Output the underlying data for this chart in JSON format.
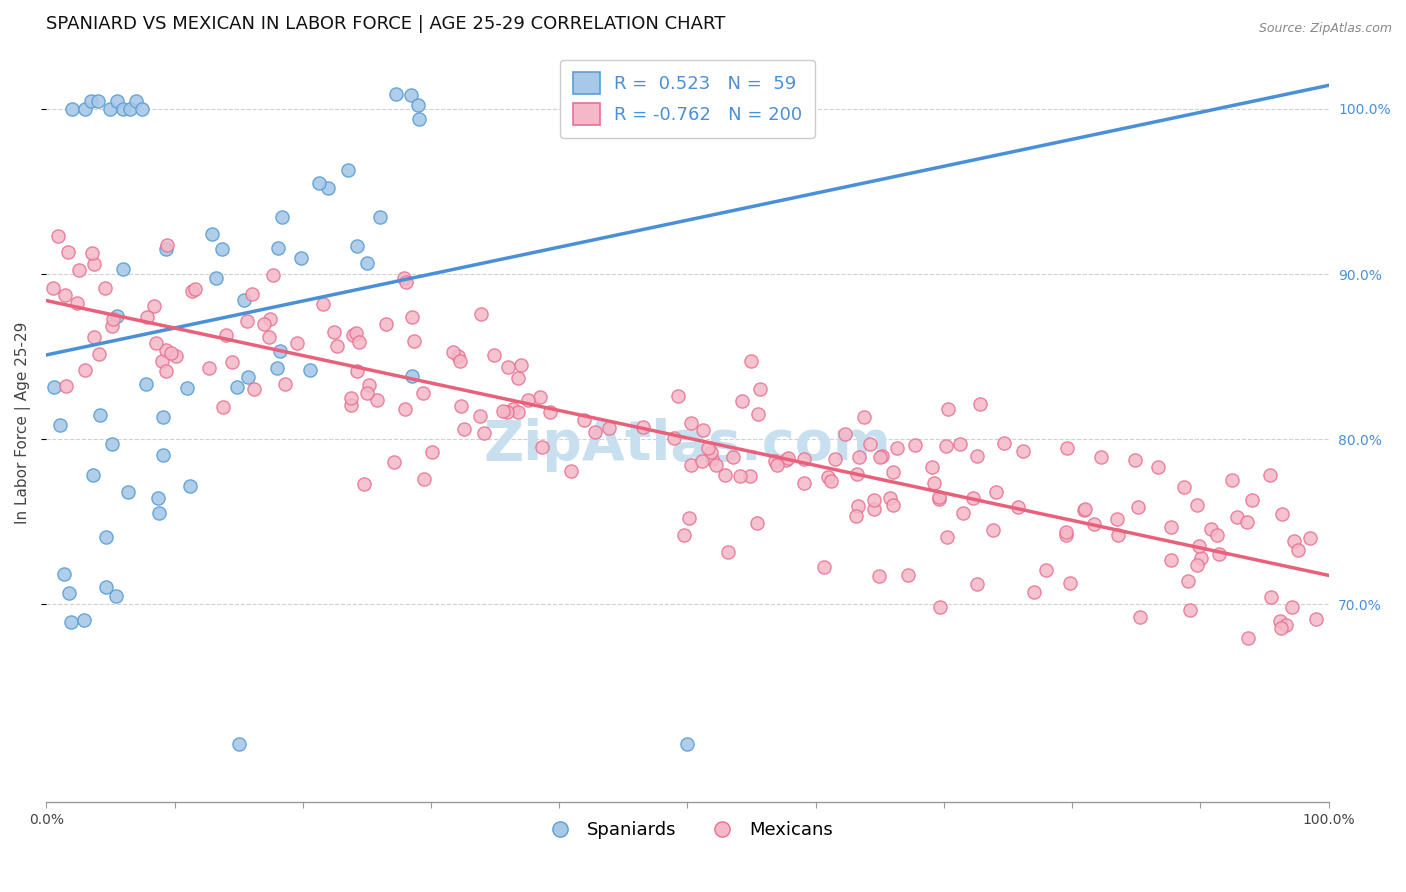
{
  "title": "SPANIARD VS MEXICAN IN LABOR FORCE | AGE 25-29 CORRELATION CHART",
  "source": "Source: ZipAtlas.com",
  "ylabel": "In Labor Force | Age 25-29",
  "ytick_labels": [
    "70.0%",
    "80.0%",
    "90.0%",
    "100.0%"
  ],
  "ytick_positions": [
    0.7,
    0.8,
    0.9,
    1.0
  ],
  "legend_spaniards": "Spaniards",
  "legend_mexicans": "Mexicans",
  "r_spaniard": 0.523,
  "n_spaniard": 59,
  "r_mexican": -0.762,
  "n_mexican": 200,
  "spaniard_color": "#a8c8e8",
  "mexican_color": "#f4b8c8",
  "spaniard_edge_color": "#5a9fd4",
  "mexican_edge_color": "#e87090",
  "spaniard_line_color": "#4a90d9",
  "mexican_line_color": "#e8607a",
  "background_color": "#ffffff",
  "grid_color": "#d0d0d0",
  "watermark_color": "#c8dff0",
  "title_fontsize": 13,
  "axis_label_fontsize": 11,
  "tick_fontsize": 10,
  "legend_fontsize": 13,
  "xlim": [
    0.0,
    1.0
  ],
  "ylim": [
    0.58,
    1.04
  ],
  "seed": 42
}
